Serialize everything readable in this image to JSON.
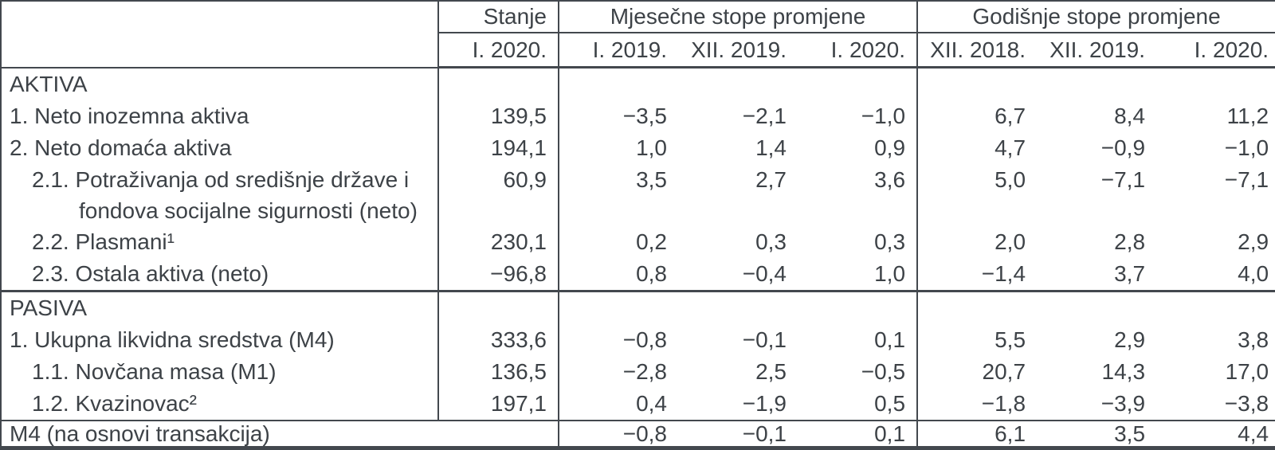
{
  "header": {
    "stanje": "Stanje",
    "stanje_period": "I. 2020.",
    "monthly_group": "Mjesečne stope promjene",
    "monthly_periods": [
      "I. 2019.",
      "XII. 2019.",
      "I. 2020."
    ],
    "annual_group": "Godišnje stope promjene",
    "annual_periods": [
      "XII. 2018.",
      "XII. 2019.",
      "I. 2020."
    ]
  },
  "rows": [
    {
      "label": "AKTIVA",
      "indent": 0,
      "section_start": false,
      "values": [
        "",
        "",
        "",
        "",
        "",
        "",
        ""
      ]
    },
    {
      "label": "1. Neto inozemna aktiva",
      "indent": 0,
      "values": [
        "139,5",
        "−3,5",
        "−2,1",
        "−1,0",
        "6,7",
        "8,4",
        "11,2"
      ]
    },
    {
      "label": "2. Neto domaća aktiva",
      "indent": 0,
      "values": [
        "194,1",
        "1,0",
        "1,4",
        "0,9",
        "4,7",
        "−0,9",
        "−1,0"
      ]
    },
    {
      "label": "2.1. Potraživanja od središnje države i",
      "label2": "fondova socijalne sigurnosti (neto)",
      "indent": 1,
      "values": [
        "60,9",
        "3,5",
        "2,7",
        "3,6",
        "5,0",
        "−7,1",
        "−7,1"
      ]
    },
    {
      "label": "2.2. Plasmani¹",
      "indent": 1,
      "values": [
        "230,1",
        "0,2",
        "0,3",
        "0,3",
        "2,0",
        "2,8",
        "2,9"
      ]
    },
    {
      "label": "2.3. Ostala aktiva (neto)",
      "indent": 1,
      "values": [
        "−96,8",
        "0,8",
        "−0,4",
        "1,0",
        "−1,4",
        "3,7",
        "4,0"
      ]
    },
    {
      "label": "PASIVA",
      "indent": 0,
      "section_start": true,
      "values": [
        "",
        "",
        "",
        "",
        "",
        "",
        ""
      ]
    },
    {
      "label": "1. Ukupna likvidna sredstva (M4)",
      "indent": 0,
      "values": [
        "333,6",
        "−0,8",
        "−0,1",
        "0,1",
        "5,5",
        "2,9",
        "3,8"
      ]
    },
    {
      "label": "1.1. Novčana masa (M1)",
      "indent": 1,
      "values": [
        "136,5",
        "−2,8",
        "2,5",
        "−0,5",
        "20,7",
        "14,3",
        "17,0"
      ]
    },
    {
      "label": "1.2. Kvazinovac²",
      "indent": 1,
      "values": [
        "197,1",
        "0,4",
        "−1,9",
        "0,5",
        "−1,8",
        "−3,9",
        "−3,8"
      ]
    }
  ],
  "footer_row": {
    "label": "M4 (na osnovi transakcija)",
    "values": [
      "−0,8",
      "−0,1",
      "0,1",
      "6,1",
      "3,5",
      "4,4"
    ]
  }
}
